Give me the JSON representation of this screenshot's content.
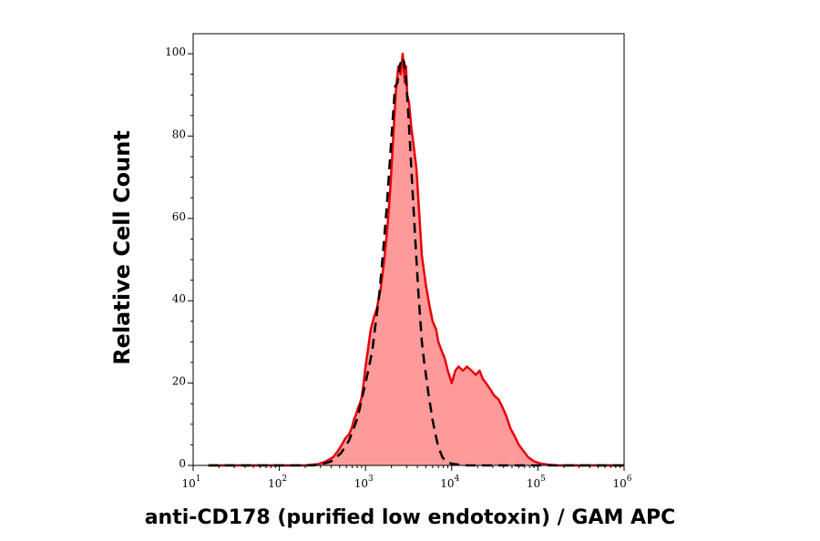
{
  "chart_data": {
    "type": "area",
    "title": "",
    "xlabel": "anti-CD178 (purified low endotoxin) / GAM APC",
    "ylabel": "Relative Cell Count",
    "x_scale": "log",
    "xlim": [
      10,
      1000000
    ],
    "ylim": [
      0,
      100
    ],
    "grid": false,
    "legend": "none",
    "x_ticks": [
      {
        "value": 10,
        "base": "10",
        "exp": "1"
      },
      {
        "value": 100,
        "base": "10",
        "exp": "2"
      },
      {
        "value": 1000,
        "base": "10",
        "exp": "3"
      },
      {
        "value": 10000,
        "base": "10",
        "exp": "4"
      },
      {
        "value": 100000,
        "base": "10",
        "exp": "5"
      },
      {
        "value": 1000000,
        "base": "10",
        "exp": "6"
      }
    ],
    "y_ticks": [
      {
        "value": 0,
        "label": "0"
      },
      {
        "value": 20,
        "label": "20"
      },
      {
        "value": 40,
        "label": "40"
      },
      {
        "value": 60,
        "label": "60"
      },
      {
        "value": 80,
        "label": "80"
      },
      {
        "value": 100,
        "label": "100"
      }
    ],
    "series": [
      {
        "style": "filled",
        "color": "#e8000a",
        "fill": "#ff9a9a",
        "x": [
          15,
          100,
          200,
          280,
          330,
          370,
          420,
          480,
          530,
          580,
          640,
          690,
          730,
          780,
          820,
          860,
          900,
          950,
          1000,
          1080,
          1150,
          1250,
          1350,
          1500,
          1650,
          1800,
          1950,
          2100,
          2250,
          2400,
          2550,
          2700,
          2850,
          2950,
          3050,
          3200,
          3400,
          3600,
          3900,
          4200,
          4500,
          5000,
          5500,
          6000,
          6600,
          7000,
          7600,
          8300,
          9000,
          10000,
          11000,
          12000,
          13500,
          15000,
          17000,
          19000,
          21000,
          23000,
          25000,
          28000,
          31000,
          35000,
          39000,
          43000,
          48000,
          54000,
          60000,
          68000,
          77000,
          90000,
          105000,
          130000,
          170000,
          300000,
          1000000
        ],
        "y": [
          0,
          0,
          0,
          0.3,
          0.8,
          1.3,
          2,
          3.5,
          5,
          6.5,
          7.5,
          9,
          11,
          12.5,
          14,
          15,
          16.5,
          20,
          24,
          29,
          33,
          36,
          38,
          43,
          50,
          58,
          68,
          80,
          91,
          97,
          95,
          100,
          93,
          97,
          90,
          88,
          82,
          78,
          72,
          61,
          51,
          44,
          39,
          35,
          33,
          30,
          28,
          26,
          23,
          20,
          23,
          24,
          23,
          24,
          23,
          22,
          23,
          21,
          20,
          18.5,
          17,
          16,
          14,
          12,
          9,
          7,
          5,
          3.5,
          2,
          1,
          0.5,
          0.2,
          0,
          0,
          0
        ]
      },
      {
        "style": "dashed",
        "color": "#000000",
        "x": [
          15,
          250,
          300,
          350,
          400,
          460,
          520,
          580,
          640,
          700,
          760,
          820,
          900,
          1000,
          1100,
          1200,
          1300,
          1450,
          1600,
          1750,
          1900,
          2050,
          2200,
          2350,
          2500,
          2650,
          2800,
          2950,
          3100,
          3300,
          3500,
          3700,
          3900,
          4100,
          4300,
          4500,
          4800,
          5100,
          5400,
          5700,
          6000,
          6400,
          6800,
          7300,
          7800,
          8500,
          10000,
          12000,
          15000,
          30000,
          1000000
        ],
        "y": [
          0,
          0,
          0.3,
          0.6,
          1,
          2,
          3,
          4.5,
          6,
          8,
          10,
          12,
          16,
          20,
          24,
          28,
          34,
          42,
          52,
          62,
          73,
          83,
          92,
          93,
          97,
          99,
          98,
          94,
          87,
          77,
          67,
          58,
          50,
          42,
          36,
          30,
          25,
          21,
          17,
          14,
          11,
          8,
          5.5,
          3.5,
          2,
          1,
          0.4,
          0.2,
          0,
          0,
          0
        ]
      }
    ]
  }
}
